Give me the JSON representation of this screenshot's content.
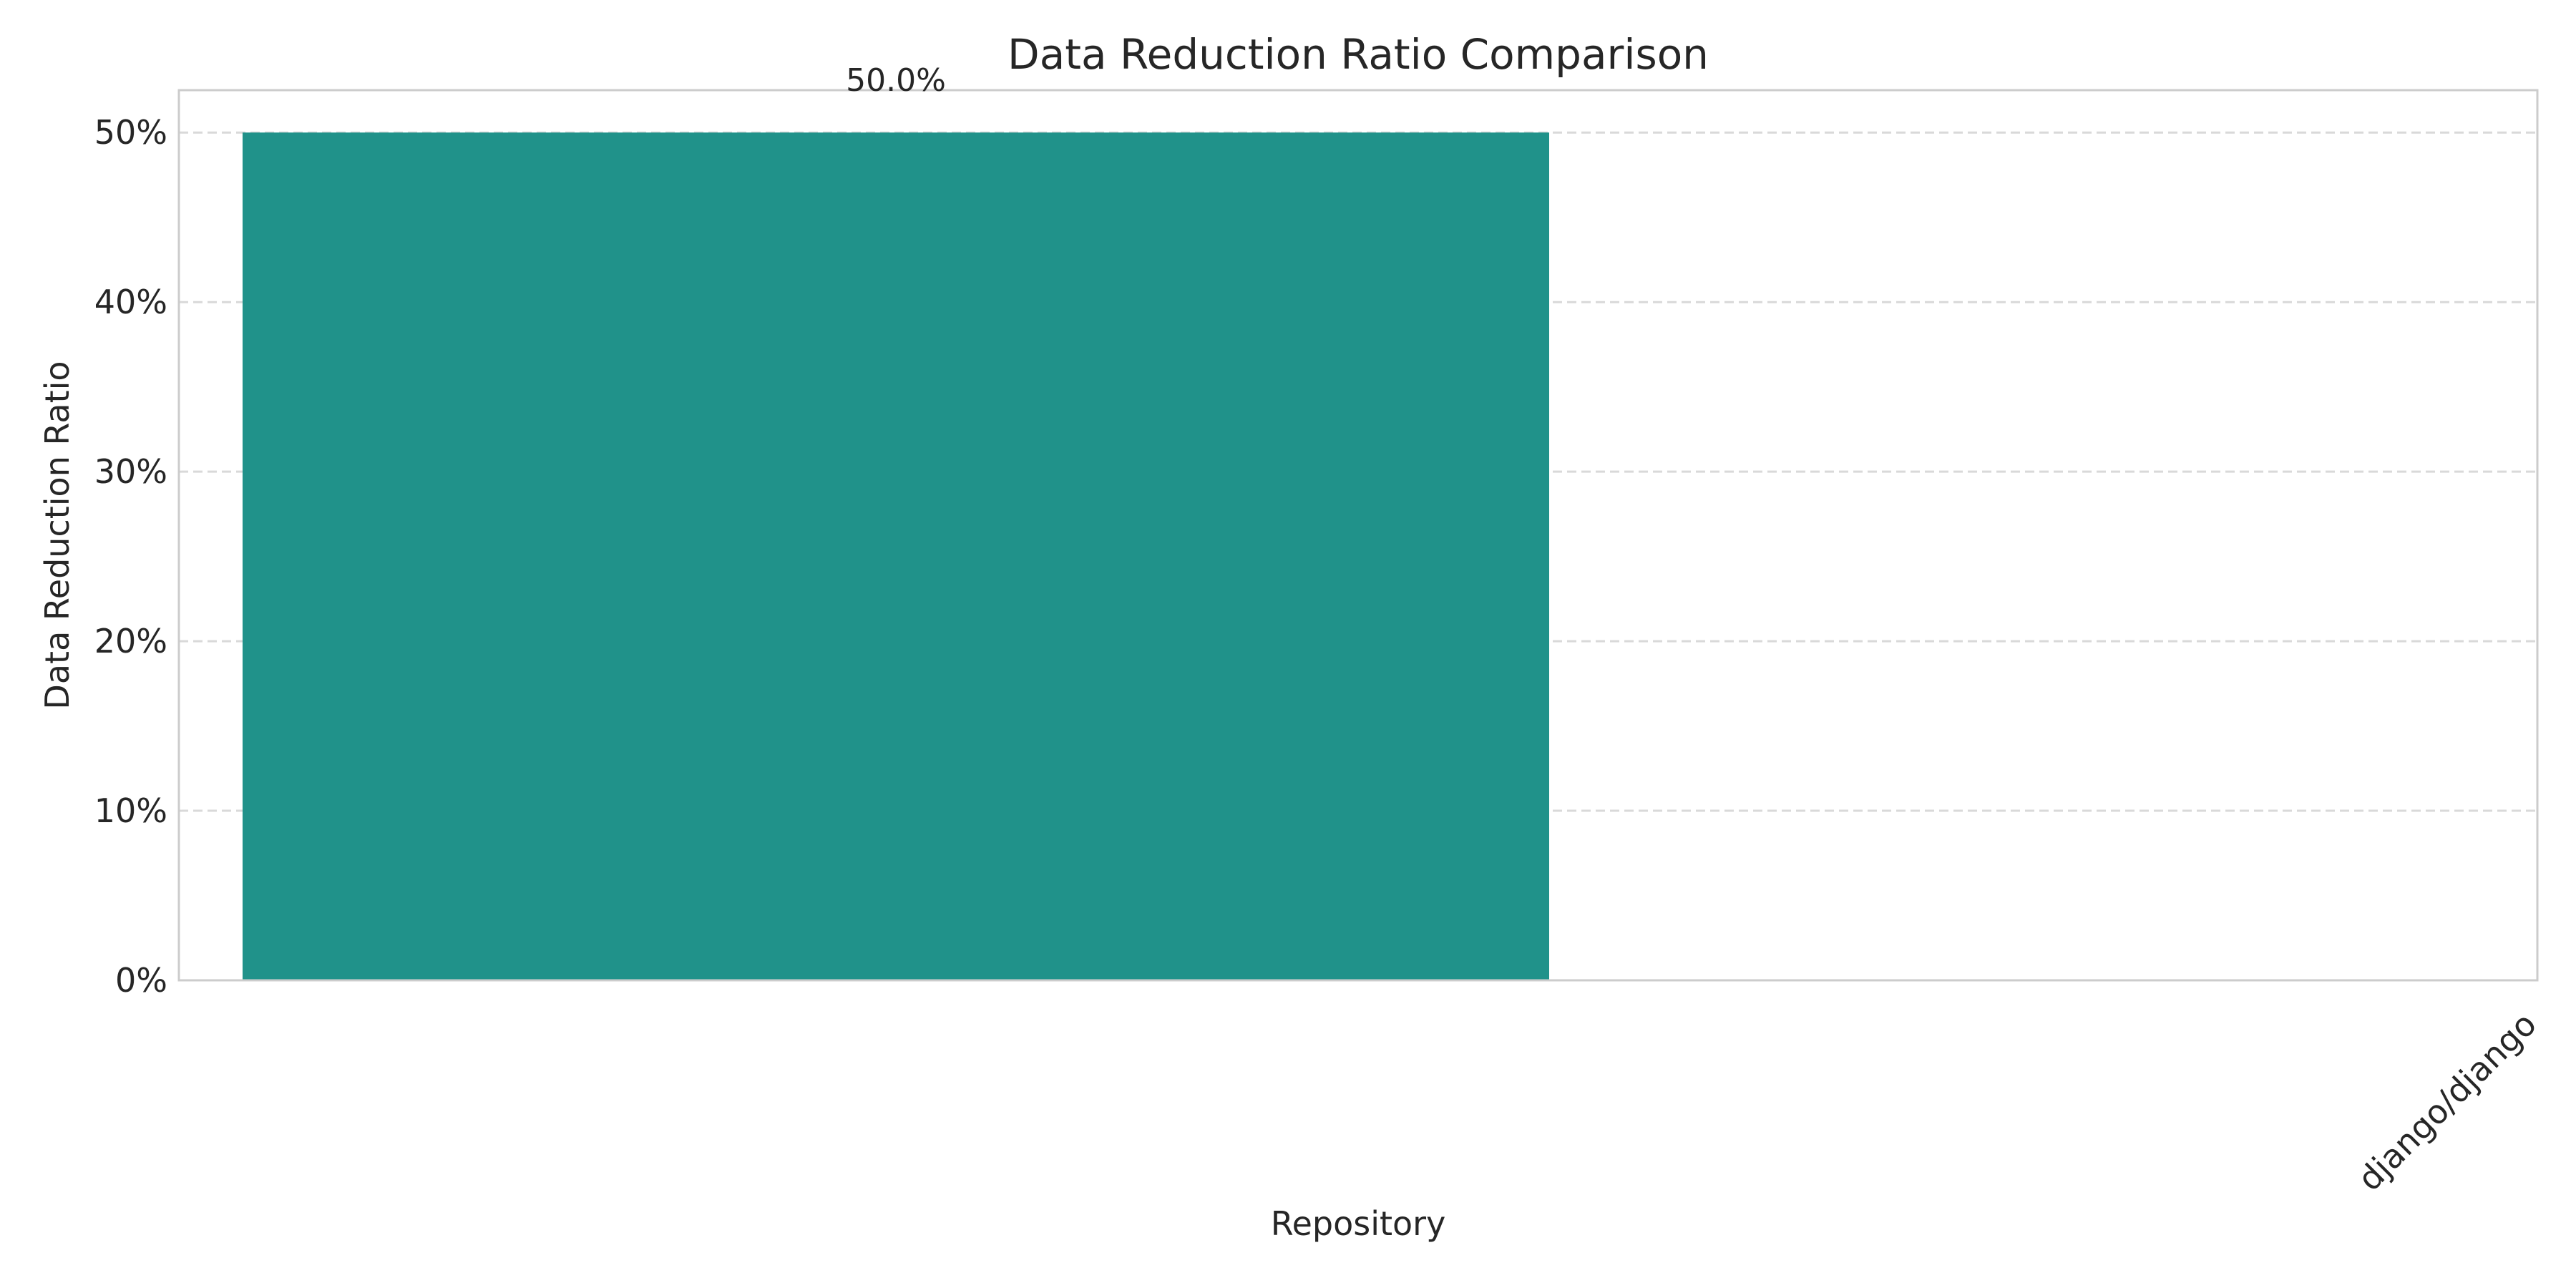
{
  "chart_data": {
    "type": "bar",
    "title": "Data Reduction Ratio Comparison",
    "xlabel": "Repository",
    "ylabel": "Data Reduction Ratio",
    "categories": [
      "django/django"
    ],
    "values": [
      50.0
    ],
    "data_labels": [
      "50.0%"
    ],
    "y_ticks": [
      0,
      10,
      20,
      30,
      40,
      50
    ],
    "y_tick_labels": [
      "0%",
      "10%",
      "20%",
      "30%",
      "40%",
      "50%"
    ],
    "ylim": [
      0,
      52.5
    ],
    "grid": "y, dashed",
    "bar_color": "#20928A",
    "grid_color": "#D9D9D9",
    "frame_color": "#CCCCCC",
    "text_color": "#262626"
  }
}
